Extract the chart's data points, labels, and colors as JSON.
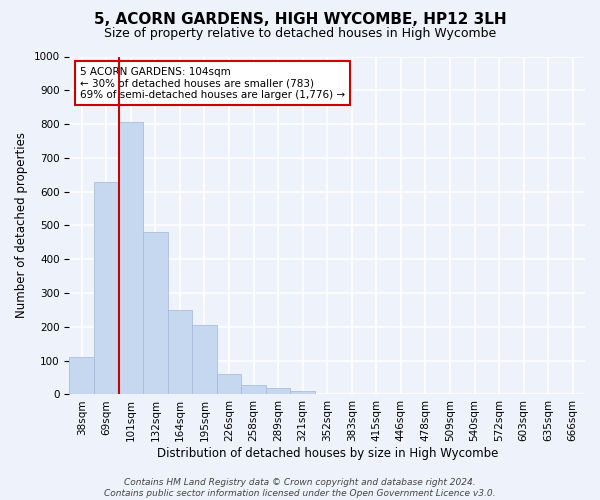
{
  "title": "5, ACORN GARDENS, HIGH WYCOMBE, HP12 3LH",
  "subtitle": "Size of property relative to detached houses in High Wycombe",
  "xlabel": "Distribution of detached houses by size in High Wycombe",
  "ylabel": "Number of detached properties",
  "bar_values": [
    110,
    630,
    805,
    480,
    250,
    205,
    60,
    28,
    18,
    10,
    0,
    0,
    0,
    0,
    0,
    0,
    0,
    0,
    0,
    0,
    0
  ],
  "bar_labels": [
    "38sqm",
    "69sqm",
    "101sqm",
    "132sqm",
    "164sqm",
    "195sqm",
    "226sqm",
    "258sqm",
    "289sqm",
    "321sqm",
    "352sqm",
    "383sqm",
    "415sqm",
    "446sqm",
    "478sqm",
    "509sqm",
    "540sqm",
    "572sqm",
    "603sqm",
    "635sqm",
    "666sqm"
  ],
  "ylim": [
    0,
    1000
  ],
  "yticks": [
    0,
    100,
    200,
    300,
    400,
    500,
    600,
    700,
    800,
    900,
    1000
  ],
  "bar_color": "#c5d8f0",
  "bar_edge_color": "#a0b8d8",
  "vline_color": "#cc0000",
  "vline_x": 1.5,
  "annotation_text": "5 ACORN GARDENS: 104sqm\n← 30% of detached houses are smaller (783)\n69% of semi-detached houses are larger (1,776) →",
  "annotation_box_color": "#ffffff",
  "annotation_box_edge_color": "#cc0000",
  "footer_line1": "Contains HM Land Registry data © Crown copyright and database right 2024.",
  "footer_line2": "Contains public sector information licensed under the Open Government Licence v3.0.",
  "background_color": "#eef2fa",
  "axes_background_color": "#eef2fa",
  "grid_color": "#ffffff",
  "title_fontsize": 11,
  "subtitle_fontsize": 9,
  "axis_label_fontsize": 8.5,
  "tick_fontsize": 7.5,
  "footer_fontsize": 6.5
}
